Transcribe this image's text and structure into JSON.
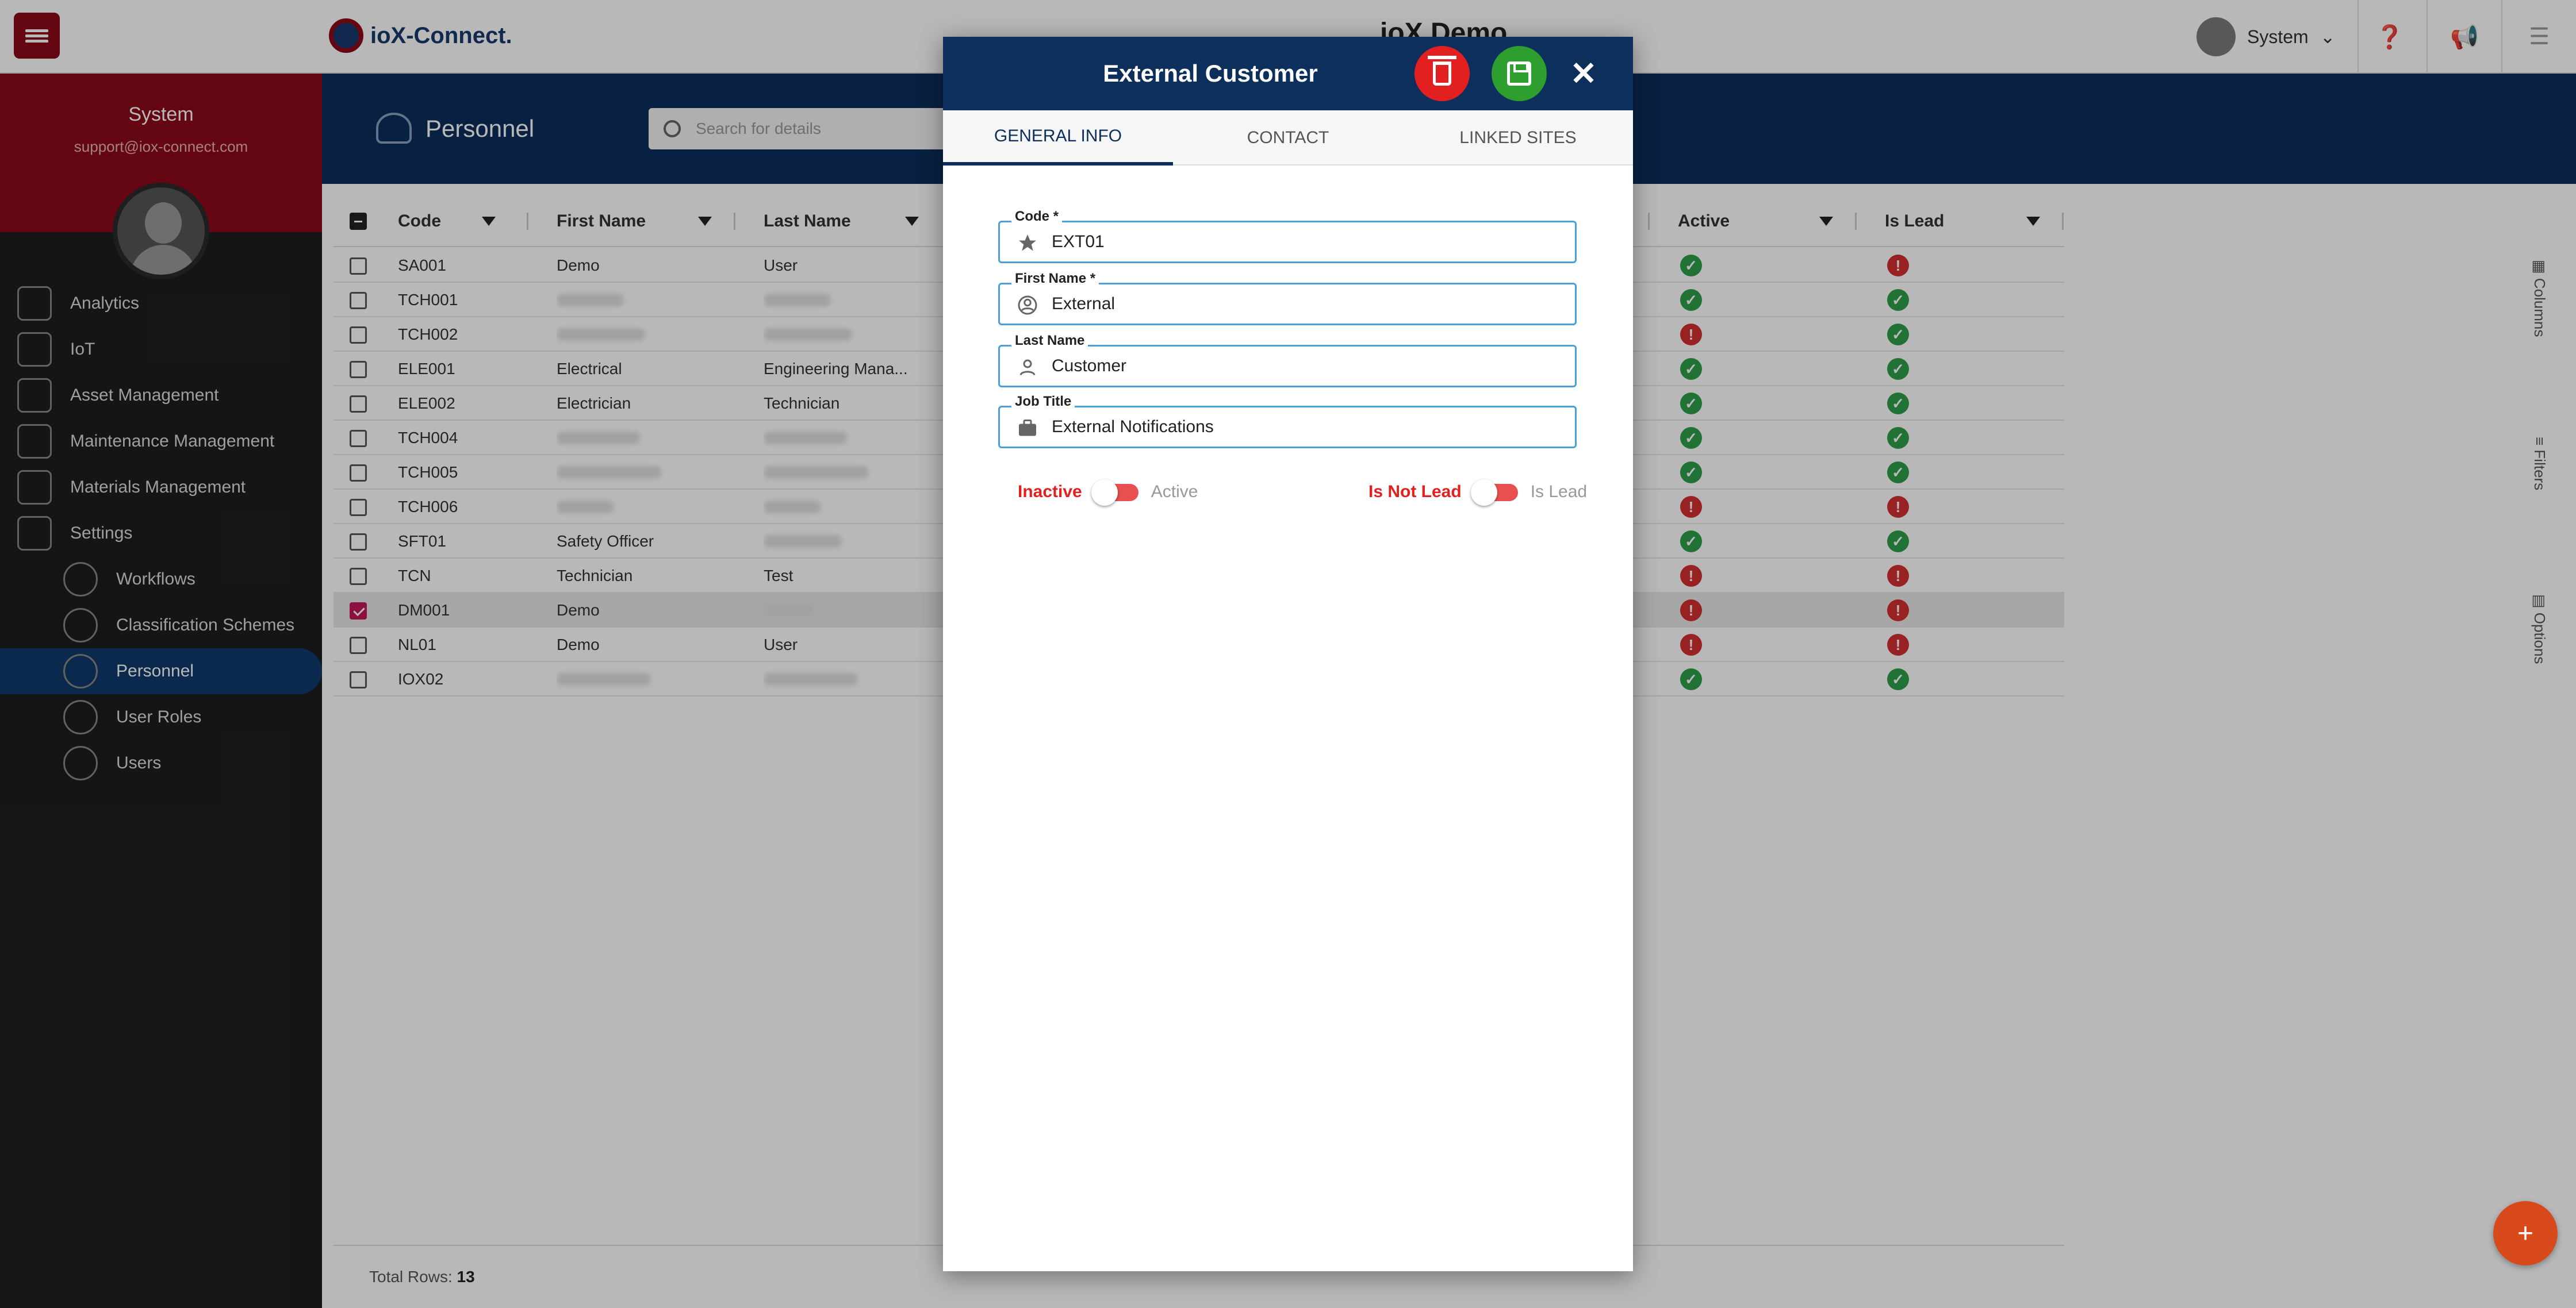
{
  "app": {
    "logo_text": "ioX-Connect.",
    "title": "ioX Demo"
  },
  "user": {
    "name": "System",
    "email": "support@iox-connect.com"
  },
  "sidebar": {
    "items": [
      {
        "label": "Analytics"
      },
      {
        "label": "IoT"
      },
      {
        "label": "Asset Management"
      },
      {
        "label": "Maintenance Management"
      },
      {
        "label": "Materials Management"
      },
      {
        "label": "Settings"
      }
    ],
    "subitems": [
      {
        "label": "Workflows"
      },
      {
        "label": "Classification Schemes"
      },
      {
        "label": "Personnel"
      },
      {
        "label": "User Roles"
      },
      {
        "label": "Users"
      }
    ]
  },
  "page": {
    "title": "Personnel",
    "search_placeholder": "Search for details"
  },
  "grid": {
    "columns": {
      "code": "Code",
      "first_name": "First Name",
      "last_name": "Last Name",
      "active": "Active",
      "is_lead": "Is Lead"
    },
    "rows": [
      {
        "code": "SA001",
        "first_name": "Demo",
        "last_name": "User",
        "active": true,
        "lead": false
      },
      {
        "code": "TCH001",
        "first_name": "",
        "last_name": "",
        "active": true,
        "lead": true
      },
      {
        "code": "TCH002",
        "first_name": "",
        "last_name": "",
        "active": false,
        "lead": true
      },
      {
        "code": "ELE001",
        "first_name": "Electrical",
        "last_name": "Engineering Mana...",
        "active": true,
        "lead": true
      },
      {
        "code": "ELE002",
        "first_name": "Electrician",
        "last_name": "Technician",
        "active": true,
        "lead": true
      },
      {
        "code": "TCH004",
        "first_name": "",
        "last_name": "",
        "active": true,
        "lead": true
      },
      {
        "code": "TCH005",
        "first_name": "",
        "last_name": "",
        "active": true,
        "lead": true
      },
      {
        "code": "TCH006",
        "first_name": "",
        "last_name": "",
        "active": false,
        "lead": false
      },
      {
        "code": "SFT01",
        "first_name": "Safety Officer",
        "last_name": "",
        "active": true,
        "lead": true
      },
      {
        "code": "TCN",
        "first_name": "Technician",
        "last_name": "Test",
        "active": false,
        "lead": false
      },
      {
        "code": "DM001",
        "first_name": "Demo",
        "last_name": "",
        "active": false,
        "lead": false,
        "selected": true
      },
      {
        "code": "NL01",
        "first_name": "Demo",
        "last_name": "User",
        "active": false,
        "lead": false
      },
      {
        "code": "IOX02",
        "first_name": "",
        "last_name": "",
        "active": true,
        "lead": true
      }
    ],
    "footer_label": "Total Rows:",
    "total_rows": "13"
  },
  "side_tools": {
    "columns": "Columns",
    "filters": "Filters",
    "options": "Options"
  },
  "modal": {
    "title": "External Customer",
    "tabs": [
      "GENERAL INFO",
      "CONTACT",
      "LINKED SITES"
    ],
    "active_tab": 0,
    "fields": {
      "code": {
        "label": "Code *",
        "value": "EXT01",
        "icon": "star-icon"
      },
      "first_name": {
        "label": "First Name *",
        "value": "External",
        "icon": "user-circle-icon"
      },
      "last_name": {
        "label": "Last Name",
        "value": "Customer",
        "icon": "user-icon"
      },
      "job_title": {
        "label": "Job Title",
        "value": "External Notifications",
        "icon": "briefcase-icon"
      }
    },
    "toggles": {
      "active": {
        "off_label": "Inactive",
        "on_label": "Active",
        "state": "off"
      },
      "lead": {
        "off_label": "Is Not Lead",
        "on_label": "Is Lead",
        "state": "off"
      }
    }
  },
  "colors": {
    "brand_red": "#8b0a1a",
    "navy": "#0c2f5c",
    "ok": "#2e9e4a",
    "bad": "#d32f2f",
    "fab": "#d84a1b"
  }
}
